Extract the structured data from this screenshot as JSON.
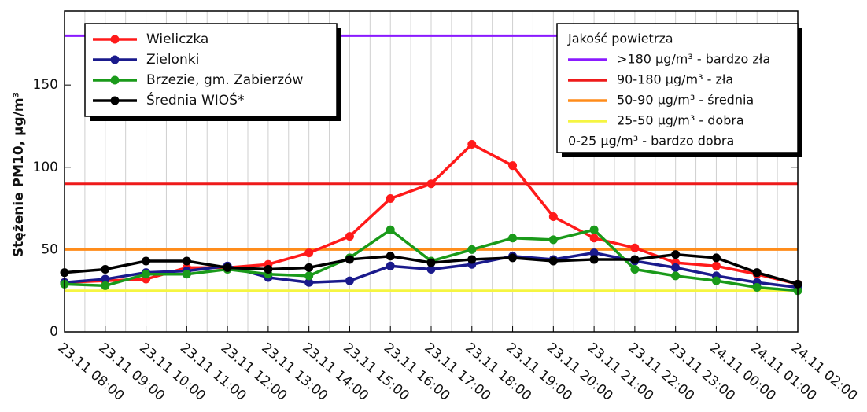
{
  "chart_data": {
    "type": "line",
    "y_label": "Stężenie PM10, µg/m³",
    "categories": [
      "23.11 08:00",
      "23.11 09:00",
      "23.11 10:00",
      "23.11 11:00",
      "23.11 12:00",
      "23.11 13:00",
      "23.11 14:00",
      "23.11 15:00",
      "23.11 16:00",
      "23.11 17:00",
      "23.11 18:00",
      "23.11 19:00",
      "23.11 20:00",
      "23.11 21:00",
      "23.11 22:00",
      "23.11 23:00",
      "24.11 00:00",
      "24.11 01:00",
      "24.11 02:00"
    ],
    "series": [
      {
        "name": "Wieliczka",
        "color": "#ff1a1a",
        "values": [
          30,
          31,
          32,
          39,
          39,
          41,
          48,
          58,
          81,
          90,
          114,
          101,
          70,
          57,
          51,
          42,
          40,
          35,
          29
        ]
      },
      {
        "name": "Zielonki",
        "color": "#1a1a8c",
        "values": [
          30,
          32,
          36,
          37,
          40,
          33,
          30,
          31,
          40,
          38,
          41,
          46,
          44,
          48,
          43,
          39,
          34,
          30,
          27
        ]
      },
      {
        "name": "Brzezie, gm. Zabierzów",
        "color": "#1a9a1a",
        "values": [
          29,
          28,
          35,
          35,
          38,
          35,
          34,
          45,
          62,
          43,
          50,
          57,
          56,
          62,
          38,
          34,
          31,
          27,
          25
        ]
      },
      {
        "name": "Średnia WIOŚ*",
        "color": "#000000",
        "values": [
          36,
          38,
          43,
          43,
          39,
          38,
          39,
          44,
          46,
          42,
          44,
          45,
          43,
          44,
          44,
          47,
          45,
          36,
          29
        ]
      }
    ],
    "thresholds_title": "Jakość powietrza",
    "thresholds": [
      {
        "value": 180,
        "color": "#8a1aff",
        "label": ">180 µg/m³ - bardzo zła"
      },
      {
        "value": 90,
        "color": "#ee1a1a",
        "label": "90-180 µg/m³ - zła"
      },
      {
        "value": 50,
        "color": "#ff8c1a",
        "label": "50-90 µg/m³ - średnia"
      },
      {
        "value": 25,
        "color": "#f5f542",
        "label": "25-50 µg/m³ - dobra"
      },
      {
        "label": "0-25 µg/m³ - bardzo dobra"
      }
    ],
    "ylim": [
      0,
      195
    ],
    "yticks": [
      0,
      50,
      100,
      150
    ],
    "grid": true
  }
}
